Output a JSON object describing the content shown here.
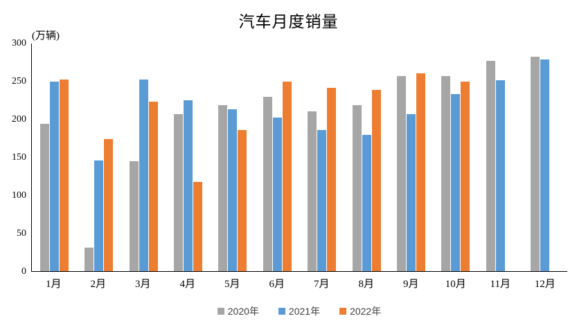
{
  "chart_data": {
    "type": "bar",
    "title": "汽车月度销量",
    "y_unit_label": "(万辆)",
    "categories": [
      "1月",
      "2月",
      "3月",
      "4月",
      "5月",
      "6月",
      "7月",
      "8月",
      "9月",
      "10月",
      "11月",
      "12月"
    ],
    "series": [
      {
        "name": "2020年",
        "color": "#A6A6A6",
        "values": [
          194,
          31,
          145,
          207,
          219,
          230,
          211,
          219,
          257,
          257,
          277,
          283
        ]
      },
      {
        "name": "2021年",
        "color": "#5B9BD5",
        "values": [
          250,
          146,
          253,
          225,
          213,
          202,
          186,
          180,
          207,
          233,
          252,
          279
        ]
      },
      {
        "name": "2022年",
        "color": "#ED7D31",
        "values": [
          253,
          174,
          223,
          118,
          186,
          250,
          242,
          239,
          261,
          250,
          null,
          null
        ]
      }
    ],
    "ylim": [
      0,
      300
    ],
    "yticks": [
      0,
      50,
      100,
      150,
      200,
      250,
      300
    ],
    "grid": false,
    "legend_position": "bottom",
    "axis_color": "#000000"
  }
}
